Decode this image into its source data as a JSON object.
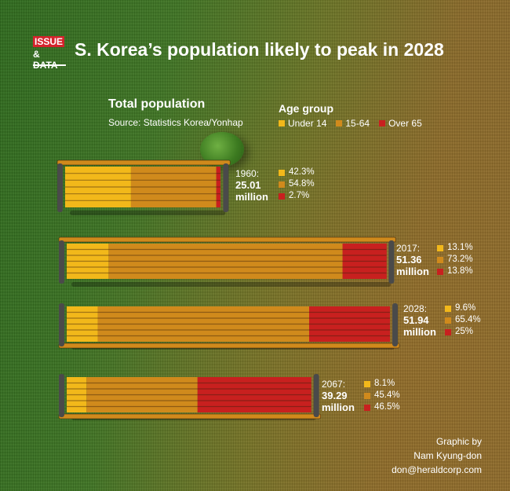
{
  "badge": {
    "line1": "ISSUE",
    "line2": "& DATA"
  },
  "title": "S. Korea’s population likely to peak in 2028",
  "subtitle": "Total population",
  "source": "Source: Statistics Korea/Yonhap",
  "legend": {
    "title": "Age group",
    "items": [
      {
        "label": "Under 14",
        "color": "#f2b81a"
      },
      {
        "label": "15-64",
        "color": "#d08a1c"
      },
      {
        "label": "Over 65",
        "color": "#c8201f"
      }
    ]
  },
  "chart_data": {
    "type": "bar",
    "title": "S. Korea’s population likely to peak in 2028",
    "subtitle": "Total population",
    "unit": "million",
    "categories": [
      "1960",
      "2017",
      "2028",
      "2067"
    ],
    "total_population": [
      25.01,
      51.36,
      51.94,
      39.29
    ],
    "series": [
      {
        "name": "Under 14",
        "values": [
          42.3,
          13.1,
          9.6,
          8.1
        ]
      },
      {
        "name": "15-64",
        "values": [
          54.8,
          73.2,
          65.4,
          45.4
        ]
      },
      {
        "name": "Over 65",
        "values": [
          2.7,
          13.8,
          25,
          46.5
        ]
      }
    ],
    "records": [
      {
        "year_label": "1960:",
        "pop": "25.01",
        "unit": "million",
        "shares": [
          "42.3%",
          "54.8%",
          "2.7%"
        ]
      },
      {
        "year_label": "2017:",
        "pop": "51.36",
        "unit": "million",
        "shares": [
          "13.1%",
          "73.2%",
          "13.8%"
        ]
      },
      {
        "year_label": "2028:",
        "pop": "51.94",
        "unit": "million",
        "shares": [
          "9.6%",
          "65.4%",
          "25%"
        ]
      },
      {
        "year_label": "2067:",
        "pop": "39.29",
        "unit": "million",
        "shares": [
          "8.1%",
          "45.4%",
          "46.5%"
        ]
      }
    ]
  },
  "credit": {
    "line1": "Graphic by",
    "line2": "Nam Kyung-don",
    "line3": "don@heraldcorp.com"
  }
}
